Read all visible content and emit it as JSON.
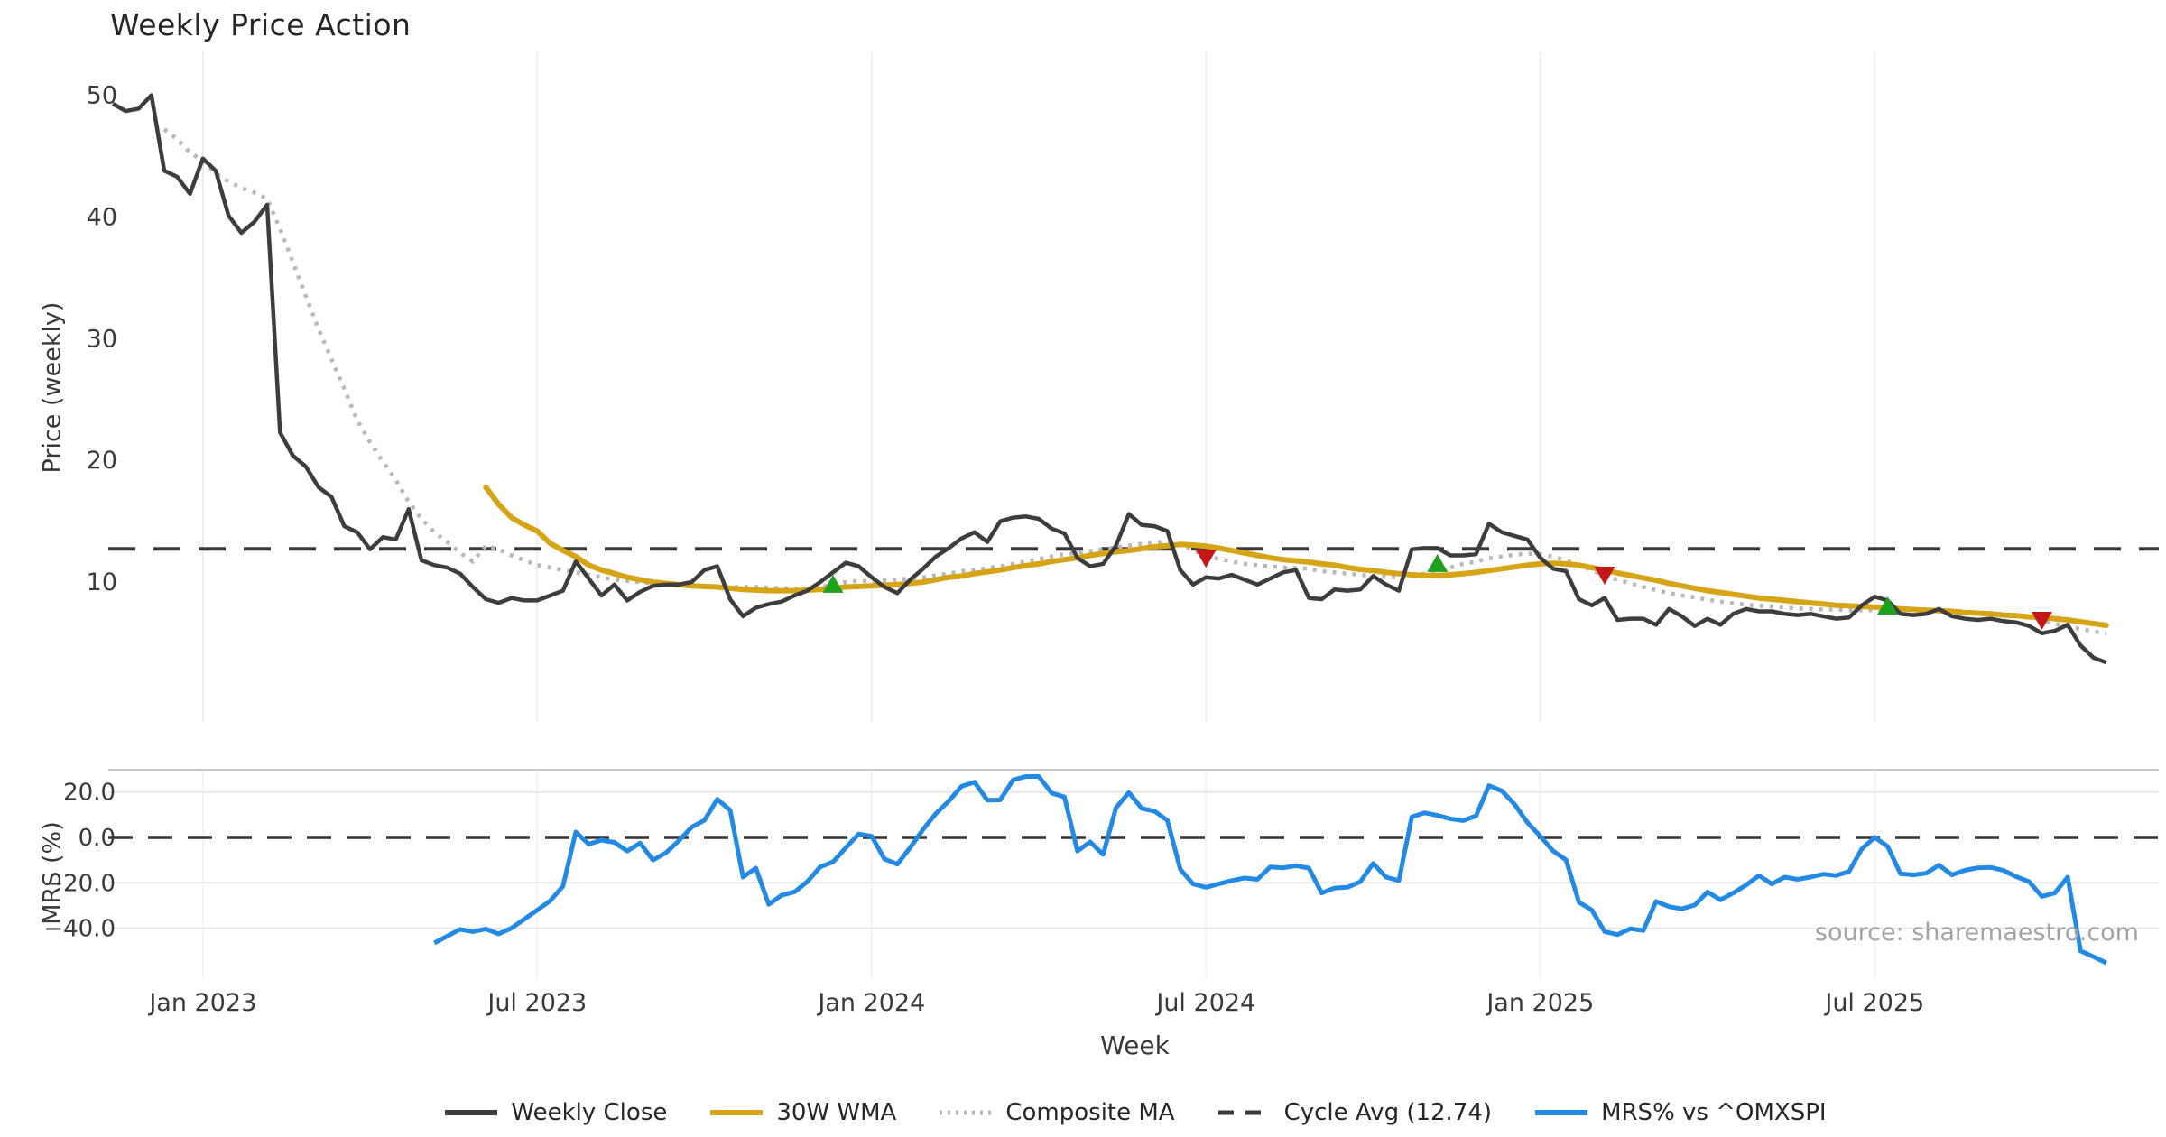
{
  "chart_data": {
    "type": "line",
    "title": "Weekly Price Action",
    "source": "source: sharemaestro.com",
    "start_date": "2022-11-14",
    "step_days": 7,
    "x_axis": {
      "label": "Week",
      "tick_indices": [
        7,
        33,
        59,
        85,
        111,
        137
      ],
      "tick_labels": [
        "Jan 2023",
        "Jul 2023",
        "Jan 2024",
        "Jul 2024",
        "Jan 2025",
        "Jul 2025"
      ]
    },
    "panels": {
      "price": {
        "ylabel": "Price (weekly)",
        "ytick_values": [
          50,
          40,
          30,
          20,
          10
        ],
        "ytick_labels": [
          "50",
          "40",
          "30",
          "20",
          "10"
        ],
        "ylim": [
          -1.48,
          53.6
        ],
        "grid": "vertical-only"
      },
      "mrs": {
        "ylabel": "MRS (%)",
        "ytick_values": [
          20,
          0,
          -20,
          -40
        ],
        "ytick_labels": [
          "20.0",
          "0.0",
          "−20.0",
          "−40.0"
        ],
        "ylim": [
          -62.4,
          29.8
        ],
        "zero_line": 0,
        "grid": "horizontal"
      }
    },
    "series": {
      "weekly_close": {
        "label": "Weekly Close",
        "color": "#3d3d3d",
        "start_index": 0,
        "values": [
          49.3,
          48.7,
          48.9,
          50.0,
          43.8,
          43.3,
          41.9,
          44.8,
          43.8,
          40.1,
          38.7,
          39.6,
          41.0,
          22.3,
          20.4,
          19.5,
          17.8,
          17.0,
          14.6,
          14.1,
          12.7,
          13.7,
          13.5,
          16.0,
          11.8,
          11.4,
          11.2,
          10.7,
          9.6,
          8.6,
          8.3,
          8.7,
          8.5,
          8.5,
          8.9,
          9.3,
          11.7,
          10.3,
          8.9,
          9.8,
          8.5,
          9.2,
          9.7,
          9.8,
          9.8,
          10.0,
          11.0,
          11.3,
          8.6,
          7.2,
          7.9,
          8.2,
          8.4,
          8.9,
          9.3,
          10.0,
          10.8,
          11.6,
          11.3,
          10.4,
          9.6,
          9.1,
          10.2,
          11.1,
          12.1,
          12.8,
          13.6,
          14.1,
          13.3,
          15.0,
          15.3,
          15.4,
          15.2,
          14.4,
          14.0,
          12.0,
          11.3,
          11.5,
          13.0,
          15.6,
          14.7,
          14.6,
          14.2,
          11.0,
          9.8,
          10.4,
          10.3,
          10.6,
          10.2,
          9.8,
          10.3,
          10.8,
          11.0,
          8.7,
          8.6,
          9.4,
          9.3,
          9.4,
          10.5,
          9.8,
          9.3,
          12.7,
          12.8,
          12.8,
          12.2,
          12.2,
          12.3,
          14.8,
          14.1,
          13.8,
          13.5,
          12.0,
          11.1,
          10.9,
          8.6,
          8.1,
          8.7,
          6.9,
          7.0,
          7.0,
          6.5,
          7.8,
          7.2,
          6.4,
          7.0,
          6.5,
          7.4,
          7.8,
          7.6,
          7.6,
          7.4,
          7.3,
          7.4,
          7.2,
          7.0,
          7.1,
          8.1,
          8.8,
          8.5,
          7.4,
          7.3,
          7.4,
          7.8,
          7.2,
          7.0,
          6.9,
          7.0,
          6.8,
          6.7,
          6.4,
          5.8,
          6.0,
          6.5,
          4.8,
          3.8,
          3.4
        ]
      },
      "wma30": {
        "label": "30W WMA",
        "color": "#d6a417",
        "start_index": 29,
        "values": [
          17.8,
          16.4,
          15.3,
          14.7,
          14.2,
          13.2,
          12.6,
          12.1,
          11.4,
          11.0,
          10.7,
          10.4,
          10.2,
          10.0,
          9.9,
          9.8,
          9.7,
          9.65,
          9.6,
          9.5,
          9.4,
          9.35,
          9.3,
          9.3,
          9.3,
          9.35,
          9.4,
          9.5,
          9.6,
          9.65,
          9.7,
          9.75,
          9.8,
          9.9,
          10.0,
          10.2,
          10.4,
          10.5,
          10.7,
          10.85,
          11.0,
          11.2,
          11.35,
          11.5,
          11.7,
          11.85,
          12.0,
          12.2,
          12.35,
          12.5,
          12.6,
          12.75,
          12.9,
          13.0,
          13.1,
          13.05,
          12.95,
          12.8,
          12.6,
          12.4,
          12.2,
          12.0,
          11.85,
          11.75,
          11.65,
          11.5,
          11.4,
          11.2,
          11.05,
          10.95,
          10.8,
          10.7,
          10.6,
          10.55,
          10.55,
          10.6,
          10.7,
          10.8,
          10.95,
          11.1,
          11.25,
          11.4,
          11.5,
          11.55,
          11.5,
          11.4,
          11.2,
          11.0,
          10.75,
          10.55,
          10.35,
          10.15,
          9.9,
          9.7,
          9.5,
          9.3,
          9.15,
          9.0,
          8.85,
          8.7,
          8.6,
          8.5,
          8.4,
          8.3,
          8.2,
          8.1,
          8.05,
          8.0,
          7.95,
          7.9,
          7.8,
          7.75,
          7.7,
          7.65,
          7.6,
          7.5,
          7.45,
          7.4,
          7.3,
          7.25,
          7.15,
          7.1,
          7.0,
          6.9,
          6.75,
          6.6,
          6.45
        ]
      },
      "composite": {
        "label": "Composite MA",
        "color": "#b8b8b8",
        "start_index": 4,
        "values": [
          47.2,
          46.4,
          45.3,
          44.6,
          43.6,
          42.9,
          42.4,
          42.0,
          41.5,
          39.0,
          36.3,
          33.5,
          30.8,
          28.3,
          25.9,
          23.3,
          21.5,
          19.9,
          18.4,
          16.6,
          15.2,
          14.1,
          13.3,
          12.4,
          11.7,
          13.0,
          12.7,
          12.2,
          11.8,
          11.4,
          11.2,
          11.0,
          10.8,
          10.6,
          10.4,
          10.2,
          10.1,
          10.0,
          9.9,
          9.8,
          9.75,
          9.7,
          9.65,
          9.6,
          9.6,
          9.6,
          9.6,
          9.55,
          9.5,
          9.45,
          9.45,
          9.6,
          9.8,
          10.0,
          10.1,
          10.1,
          10.15,
          10.2,
          10.3,
          10.4,
          10.55,
          10.7,
          10.9,
          11.0,
          11.15,
          11.3,
          11.5,
          11.7,
          11.9,
          12.1,
          12.3,
          12.4,
          12.55,
          12.7,
          12.85,
          13.0,
          13.15,
          13.25,
          13.3,
          13.1,
          12.6,
          12.2,
          11.9,
          11.7,
          11.5,
          11.4,
          11.3,
          11.2,
          11.15,
          11.1,
          10.9,
          10.8,
          10.7,
          10.6,
          10.5,
          10.45,
          10.4,
          10.5,
          10.7,
          10.9,
          11.2,
          11.5,
          11.7,
          11.95,
          12.1,
          12.25,
          12.35,
          12.3,
          12.1,
          11.8,
          11.4,
          11.0,
          10.5,
          10.2,
          9.9,
          9.6,
          9.35,
          9.1,
          8.9,
          8.75,
          8.55,
          8.4,
          8.25,
          8.15,
          8.05,
          8.0,
          7.9,
          7.85,
          7.8,
          7.75,
          7.75,
          7.7,
          7.7,
          7.7,
          7.72,
          7.75,
          7.78,
          7.75,
          7.7,
          7.65,
          7.6,
          7.5,
          7.45,
          7.35,
          7.25,
          7.1,
          6.85,
          6.6,
          6.35,
          6.15,
          5.95,
          5.8
        ]
      },
      "cycle_avg": {
        "label": "Cycle Avg (12.74)",
        "color": "#3a3a3a",
        "value": 12.74
      },
      "mrs": {
        "label": "MRS% vs ^OMXSPI",
        "color": "#2289e5",
        "start_index": 25,
        "values": [
          -46.5,
          -43.5,
          -40.5,
          -41.5,
          -40.3,
          -42.5,
          -40.0,
          -36.0,
          -32.0,
          -28.0,
          -21.5,
          2.4,
          -3.0,
          -1.2,
          -2.2,
          -6.0,
          -2.5,
          -10.0,
          -6.8,
          -1.5,
          4.5,
          7.5,
          16.8,
          12.0,
          -17.5,
          -13.5,
          -29.5,
          -25.5,
          -24.0,
          -19.5,
          -13.0,
          -10.8,
          -4.5,
          1.5,
          0.5,
          -9.5,
          -11.8,
          -4.5,
          3.5,
          10.5,
          16.0,
          22.5,
          24.3,
          16.4,
          16.5,
          25.3,
          26.8,
          26.8,
          19.5,
          17.8,
          -6.0,
          -2.0,
          -7.5,
          13.0,
          19.8,
          12.8,
          11.5,
          7.5,
          -14.0,
          -20.5,
          -22.0,
          -20.5,
          -19.0,
          -17.9,
          -18.5,
          -13.0,
          -13.4,
          -12.5,
          -13.5,
          -24.5,
          -22.3,
          -22.0,
          -19.5,
          -11.5,
          -17.5,
          -19.0,
          9.0,
          10.8,
          9.7,
          8.2,
          7.4,
          9.5,
          22.8,
          20.5,
          14.5,
          6.5,
          0.5,
          -6.0,
          -10.0,
          -28.5,
          -32.0,
          -41.5,
          -42.8,
          -40.2,
          -41.0,
          -28.2,
          -30.5,
          -31.5,
          -29.8,
          -24.0,
          -27.5,
          -24.5,
          -21.0,
          -16.8,
          -20.5,
          -17.5,
          -18.5,
          -17.5,
          -16.2,
          -16.8,
          -15.0,
          -5.0,
          0.0,
          -4.0,
          -16.0,
          -16.5,
          -15.8,
          -12.2,
          -16.5,
          -14.5,
          -13.4,
          -13.2,
          -14.5,
          -17.3,
          -19.5,
          -26.0,
          -24.5,
          -17.5,
          -50.0,
          -52.5,
          -55.3
        ]
      }
    },
    "markers": {
      "buy": {
        "shape": "triangle-up",
        "color": "#1ea11e",
        "points": [
          {
            "index": 56,
            "y": 9.8
          },
          {
            "index": 103,
            "y": 11.5
          },
          {
            "index": 138,
            "y": 8.0
          }
        ]
      },
      "sell": {
        "shape": "triangle-down",
        "color": "#c51717",
        "points": [
          {
            "index": 85,
            "y": 12.0
          },
          {
            "index": 116,
            "y": 10.6
          },
          {
            "index": 150,
            "y": 6.9
          }
        ]
      }
    },
    "style_colors": {
      "grid_vertical": "#ededed",
      "grid_horizontal": "#e7e7e7",
      "panel_spine": "#c9c9c9",
      "tick_label": "#3a3a3a"
    }
  }
}
